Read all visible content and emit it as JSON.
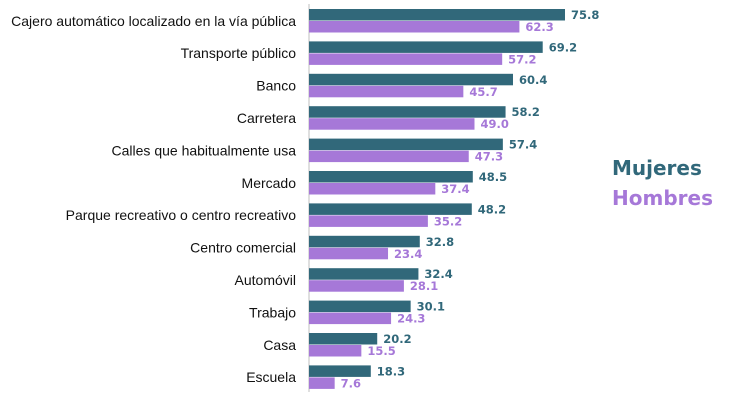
{
  "chart_data": {
    "type": "bar",
    "orientation": "horizontal",
    "title": "",
    "xlabel": "",
    "ylabel": "",
    "xlim": [
      0,
      80
    ],
    "grid": false,
    "legend_position": "right",
    "categories": [
      "Cajero automático localizado en la vía pública",
      "Transporte público",
      "Banco",
      "Carretera",
      "Calles que habitualmente usa",
      "Mercado",
      "Parque recreativo o centro recreativo",
      "Centro comercial",
      "Automóvil",
      "Trabajo",
      "Casa",
      "Escuela"
    ],
    "series": [
      {
        "name": "Mujeres",
        "color": "#31687a",
        "values": [
          75.8,
          69.2,
          60.4,
          58.2,
          57.4,
          48.5,
          48.2,
          32.8,
          32.4,
          30.1,
          20.2,
          18.3
        ],
        "labels": [
          "75.8",
          "69.2",
          "60.4",
          "58.2",
          "57.4",
          "48.5",
          "48.2",
          "32.8",
          "32.4",
          "30.1",
          "20.2",
          "18.3"
        ]
      },
      {
        "name": "Hombres",
        "color": "#a678d8",
        "values": [
          62.3,
          57.2,
          45.7,
          49.0,
          47.3,
          37.4,
          35.2,
          23.4,
          28.1,
          24.3,
          15.5,
          7.6
        ],
        "labels": [
          "62.3",
          "57.2",
          "45.7",
          "49.0",
          "47.3",
          "37.4",
          "35.2",
          "23.4",
          "28.1",
          "24.3",
          "15.5",
          "7.6"
        ]
      }
    ]
  }
}
